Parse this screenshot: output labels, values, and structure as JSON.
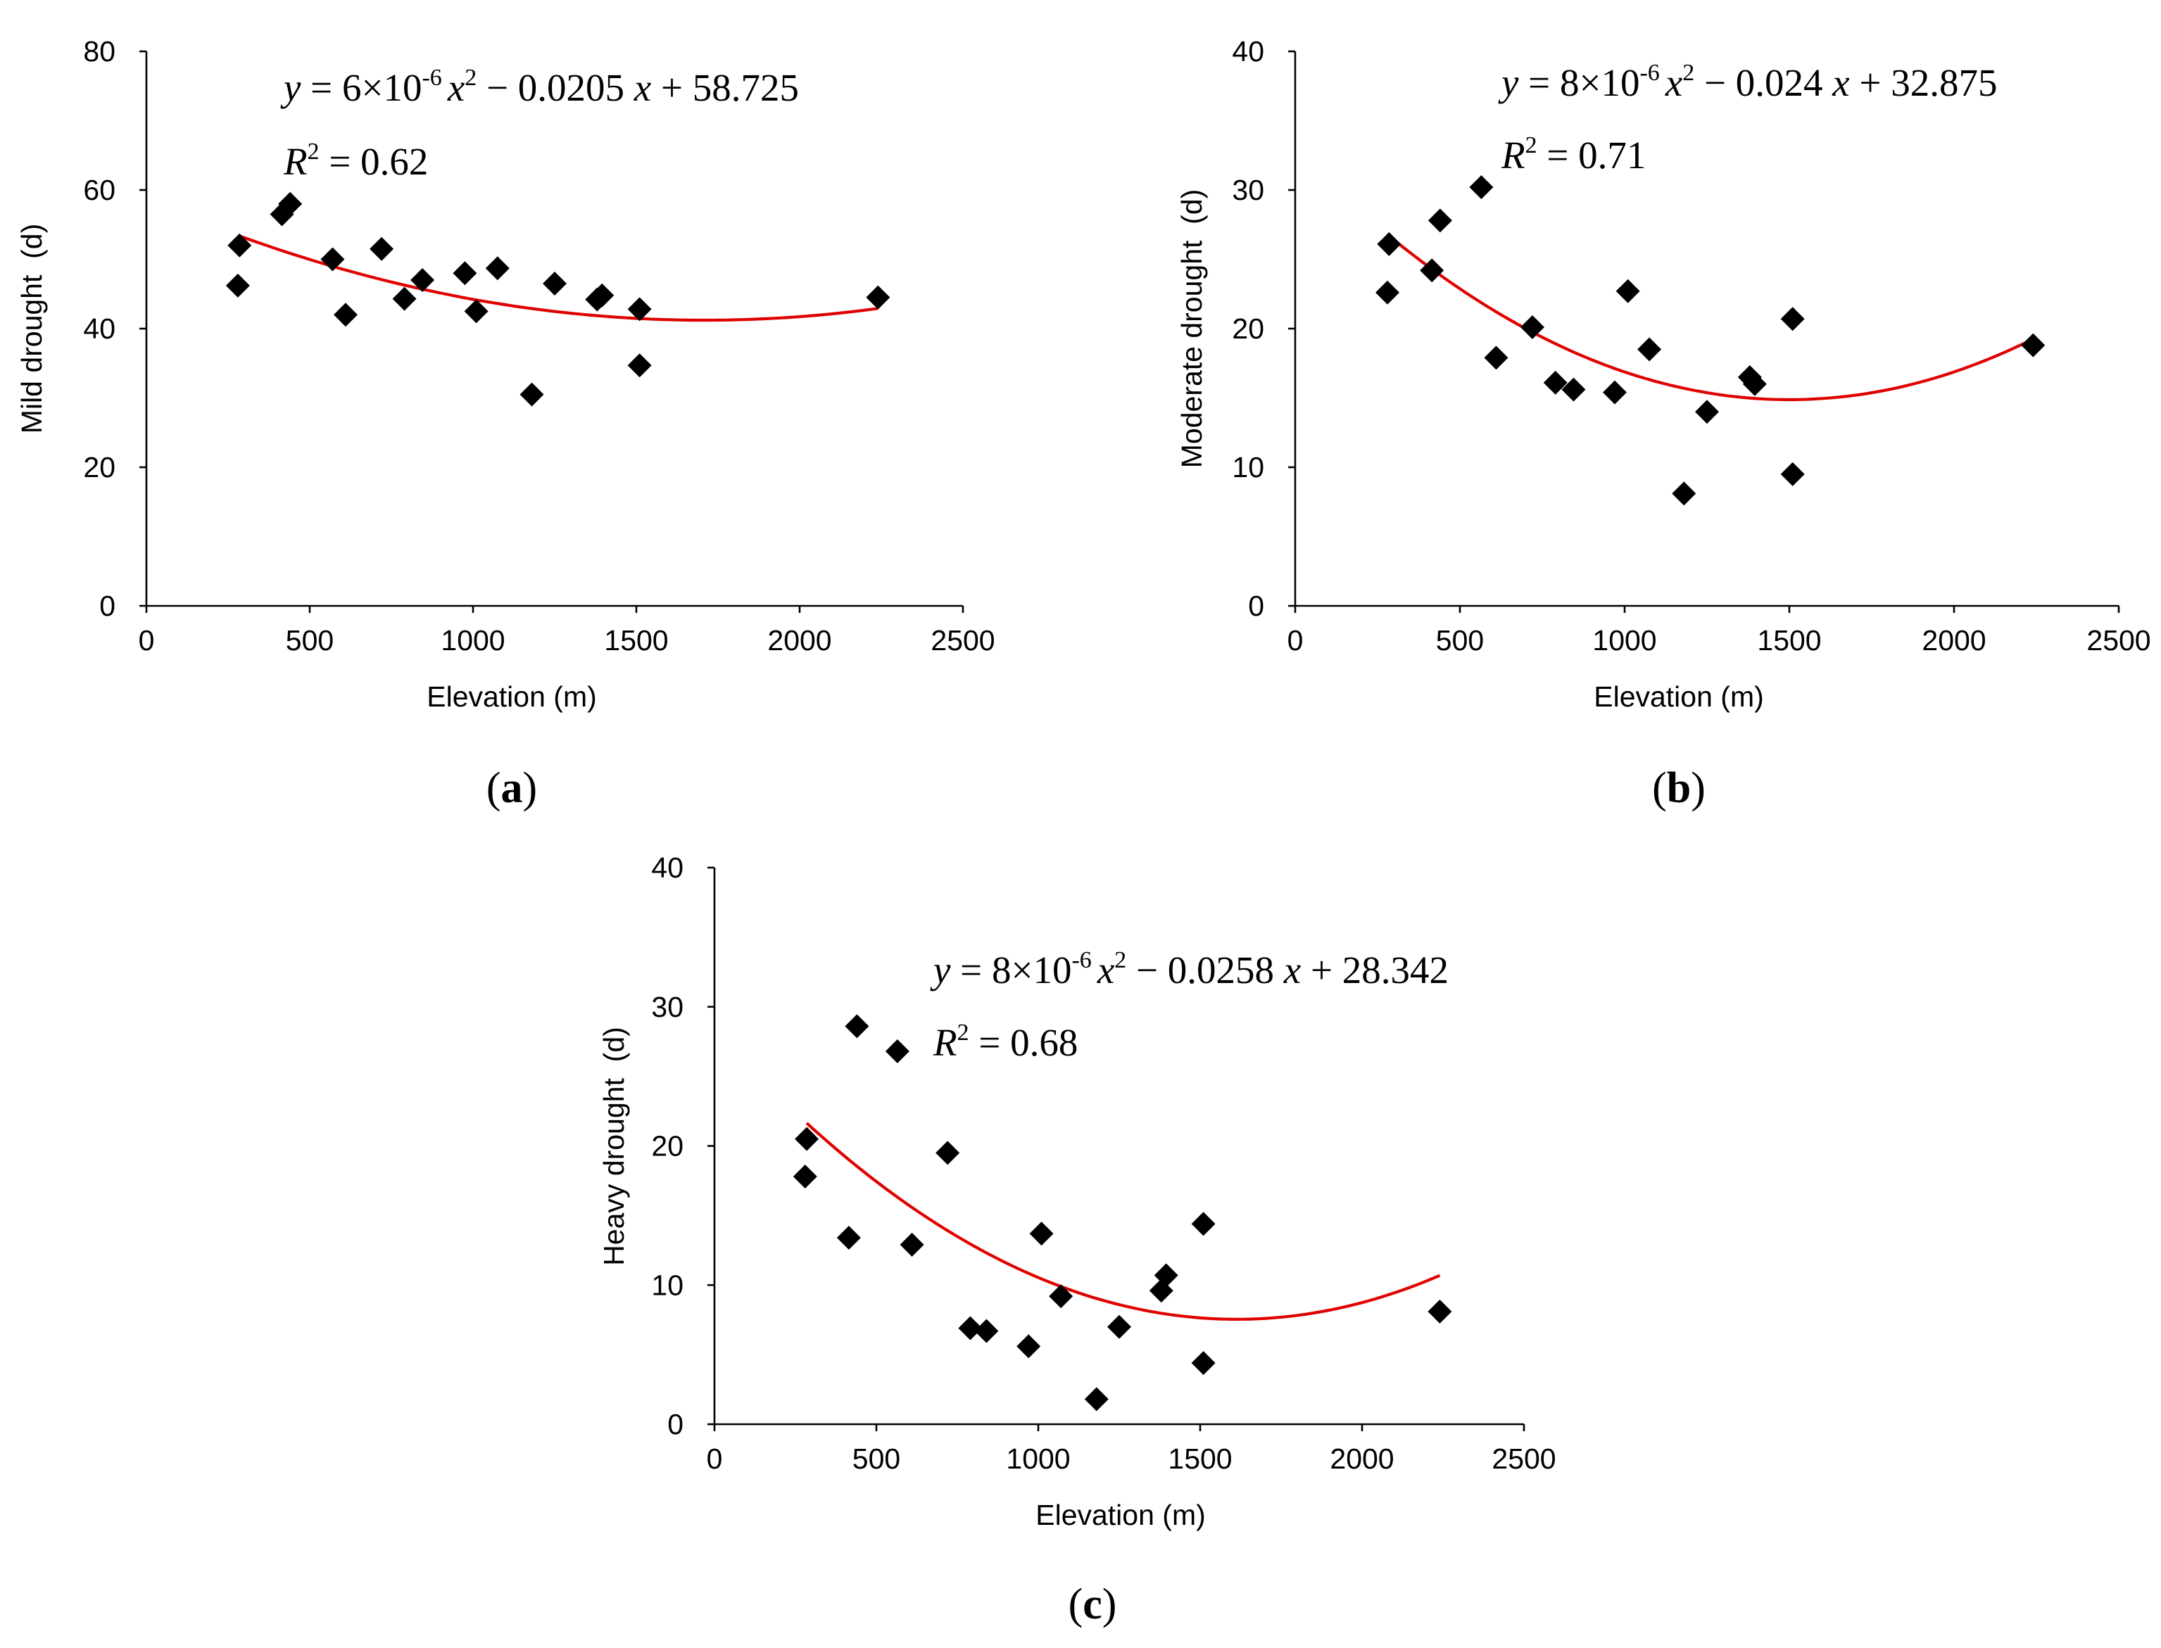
{
  "chart_data": [
    {
      "type": "scatter",
      "panel": "(a)",
      "panel_letter": "a",
      "xlabel": "Elevation (m)",
      "ylabel": "Mild drought  (d)",
      "xlim": [
        0,
        2500
      ],
      "ylim": [
        0,
        80
      ],
      "xticks": [
        0,
        500,
        1000,
        1500,
        2000,
        2500
      ],
      "yticks": [
        0,
        20,
        40,
        60,
        80
      ],
      "equation": {
        "coef_a": "6",
        "exp": "-6",
        "coef_b": "0.0205",
        "intercept": "58.725",
        "r2": "0.62"
      },
      "fit": {
        "a": 6e-06,
        "b": -0.0205,
        "c": 58.725,
        "x_range": [
          285,
          2240
        ]
      },
      "points": [
        {
          "x": 285,
          "y": 52
        },
        {
          "x": 280,
          "y": 46.2
        },
        {
          "x": 415,
          "y": 56.5
        },
        {
          "x": 440,
          "y": 58
        },
        {
          "x": 570,
          "y": 50
        },
        {
          "x": 610,
          "y": 42
        },
        {
          "x": 720,
          "y": 51.5
        },
        {
          "x": 790,
          "y": 44.3
        },
        {
          "x": 845,
          "y": 47
        },
        {
          "x": 975,
          "y": 48
        },
        {
          "x": 1010,
          "y": 42.5
        },
        {
          "x": 1075,
          "y": 48.7
        },
        {
          "x": 1180,
          "y": 30.5
        },
        {
          "x": 1250,
          "y": 46.5
        },
        {
          "x": 1380,
          "y": 44.2
        },
        {
          "x": 1395,
          "y": 44.8
        },
        {
          "x": 1510,
          "y": 42.8
        },
        {
          "x": 1510,
          "y": 34.7
        },
        {
          "x": 2240,
          "y": 44.5
        }
      ]
    },
    {
      "type": "scatter",
      "panel": "(b)",
      "panel_letter": "b",
      "xlabel": "Elevation (m)",
      "ylabel": "Moderate drought  (d)",
      "xlim": [
        0,
        2500
      ],
      "ylim": [
        0,
        40
      ],
      "xticks": [
        0,
        500,
        1000,
        1500,
        2000,
        2500
      ],
      "yticks": [
        0,
        10,
        20,
        30,
        40
      ],
      "equation": {
        "coef_a": "8",
        "exp": "-6",
        "coef_b": "0.024",
        "intercept": "32.875",
        "r2": "0.71"
      },
      "fit": {
        "a": 8e-06,
        "b": -0.024,
        "c": 32.875,
        "x_range": [
          285,
          2240
        ]
      },
      "points": [
        {
          "x": 285,
          "y": 26.1
        },
        {
          "x": 280,
          "y": 22.6
        },
        {
          "x": 415,
          "y": 24.2
        },
        {
          "x": 440,
          "y": 27.8
        },
        {
          "x": 565,
          "y": 30.2
        },
        {
          "x": 610,
          "y": 17.9
        },
        {
          "x": 720,
          "y": 20.1
        },
        {
          "x": 790,
          "y": 16.1
        },
        {
          "x": 845,
          "y": 15.6
        },
        {
          "x": 970,
          "y": 15.4
        },
        {
          "x": 1010,
          "y": 22.7
        },
        {
          "x": 1075,
          "y": 18.5
        },
        {
          "x": 1180,
          "y": 8.1
        },
        {
          "x": 1250,
          "y": 14
        },
        {
          "x": 1380,
          "y": 16.5
        },
        {
          "x": 1395,
          "y": 16
        },
        {
          "x": 1510,
          "y": 20.7
        },
        {
          "x": 1510,
          "y": 9.5
        },
        {
          "x": 2240,
          "y": 18.8
        }
      ]
    },
    {
      "type": "scatter",
      "panel": "(c)",
      "panel_letter": "c",
      "xlabel": "Elevation (m)",
      "ylabel": "Heavy drought  (d)",
      "xlim": [
        0,
        2500
      ],
      "ylim": [
        0,
        40
      ],
      "xticks": [
        0,
        500,
        1000,
        1500,
        2000,
        2500
      ],
      "yticks": [
        0,
        10,
        20,
        30,
        40
      ],
      "equation": {
        "coef_a": "8",
        "exp": "-6",
        "coef_b": "0.0258",
        "intercept": "28.342",
        "r2": "0.68"
      },
      "fit": {
        "a": 8e-06,
        "b": -0.0258,
        "c": 28.342,
        "x_range": [
          285,
          2240
        ]
      },
      "points": [
        {
          "x": 285,
          "y": 20.5
        },
        {
          "x": 280,
          "y": 17.8
        },
        {
          "x": 415,
          "y": 13.4
        },
        {
          "x": 440,
          "y": 28.6
        },
        {
          "x": 565,
          "y": 26.8
        },
        {
          "x": 610,
          "y": 12.9
        },
        {
          "x": 720,
          "y": 19.5
        },
        {
          "x": 790,
          "y": 6.9
        },
        {
          "x": 840,
          "y": 6.7
        },
        {
          "x": 970,
          "y": 5.6
        },
        {
          "x": 1010,
          "y": 13.7
        },
        {
          "x": 1070,
          "y": 9.2
        },
        {
          "x": 1180,
          "y": 1.8
        },
        {
          "x": 1250,
          "y": 7
        },
        {
          "x": 1380,
          "y": 9.6
        },
        {
          "x": 1395,
          "y": 10.7
        },
        {
          "x": 1510,
          "y": 14.4
        },
        {
          "x": 1510,
          "y": 4.4
        },
        {
          "x": 2240,
          "y": 8.1
        }
      ]
    }
  ]
}
